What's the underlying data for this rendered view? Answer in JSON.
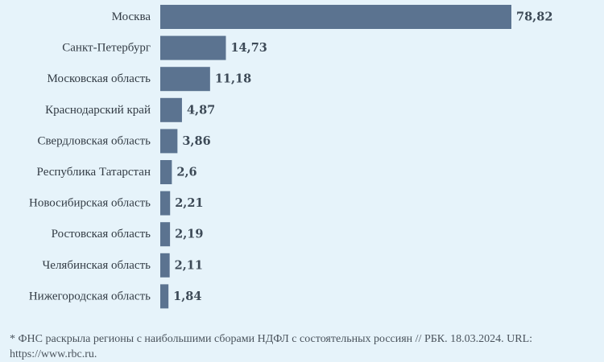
{
  "chart_data": {
    "type": "bar",
    "orientation": "horizontal",
    "categories": [
      "Москва",
      "Санкт-Петербург",
      "Московская область",
      "Краснодарский край",
      "Свердловская область",
      "Республика Татарстан",
      "Новосибирская область",
      "Ростовская область",
      "Челябинская область",
      "Нижегородская область"
    ],
    "values": [
      78.82,
      14.73,
      11.18,
      4.87,
      3.86,
      2.6,
      2.21,
      2.19,
      2.11,
      1.84
    ],
    "value_labels": [
      "78,82",
      "14,73",
      "11,18",
      "4,87",
      "3,86",
      "2,6",
      "2,21",
      "2,19",
      "2,11",
      "1,84"
    ],
    "title": "",
    "xlabel": "",
    "ylabel": "",
    "xlim": [
      0,
      78.82
    ],
    "grid": false,
    "legend": "none",
    "bar_color": "#5b7390",
    "background_color": "#e6f3fa"
  },
  "footnote": "* ФНС раскрыла регионы с наибольшими сборами НДФЛ с состоятельных россиян // РБК. 18.03.2024. URL: https://www.rbc.ru."
}
